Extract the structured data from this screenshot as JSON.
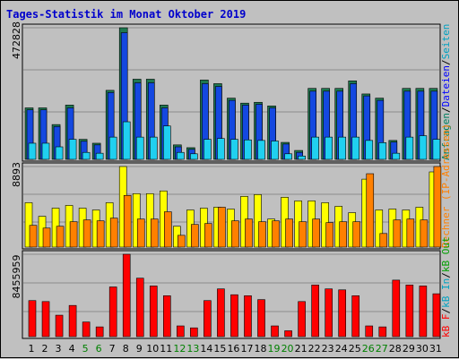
{
  "window": {
    "title": "Tages-Statistik im Monat Oktober 2019",
    "title_color": "#0000cc"
  },
  "chart_data": {
    "type": "bar",
    "title": "Tages-Statistik im Monat Oktober 2019",
    "grid": true,
    "categories": [
      "1",
      "2",
      "3",
      "4",
      "5",
      "6",
      "7",
      "8",
      "9",
      "10",
      "11",
      "12",
      "13",
      "14",
      "15",
      "16",
      "17",
      "18",
      "19",
      "20",
      "21",
      "22",
      "23",
      "24",
      "25",
      "26",
      "27",
      "28",
      "29",
      "30",
      "31"
    ],
    "weekend_days": [
      "5",
      "6",
      "12",
      "13",
      "19",
      "20",
      "26",
      "27"
    ],
    "tick_colors": {
      "weekday": "#000000",
      "weekend": "#008000"
    },
    "panels": [
      {
        "id": "requests",
        "max_label": "472828",
        "ylim": [
          0,
          472828
        ],
        "legend": [
          {
            "text": "Anfragen",
            "color": "#008060"
          },
          {
            "text": "/",
            "color": "#000000"
          },
          {
            "text": "Dateien",
            "color": "#0000ff"
          },
          {
            "text": "/",
            "color": "#000000"
          },
          {
            "text": "Seiten",
            "color": "#00a0c0"
          }
        ],
        "series": [
          {
            "name": "Anfragen",
            "color": "#1e7850",
            "values": [
              185000,
              185000,
              125000,
              195000,
              72000,
              58000,
              248000,
              472828,
              288000,
              288000,
              195000,
              52000,
              42000,
              285000,
              272000,
              220000,
              202000,
              205000,
              192000,
              61000,
              32000,
              255000,
              255000,
              255000,
              282000,
              235000,
              220000,
              68000,
              255000,
              255000,
              255000
            ]
          },
          {
            "name": "Dateien",
            "color": "#1448e0",
            "values": [
              178000,
              178000,
              118000,
              185000,
              65000,
              52000,
              240000,
              455000,
              275000,
              275000,
              185000,
              45000,
              36000,
              272000,
              262000,
              212000,
              195000,
              198000,
              185000,
              55000,
              25000,
              245000,
              245000,
              245000,
              272000,
              228000,
              212000,
              62000,
              245000,
              245000,
              245000
            ]
          },
          {
            "name": "Seiten",
            "color": "#20d0f0",
            "values": [
              58000,
              58000,
              45000,
              72000,
              25000,
              22000,
              80000,
              135000,
              80000,
              80000,
              120000,
              25000,
              20000,
              72000,
              75000,
              72000,
              70000,
              68000,
              66000,
              20000,
              12000,
              80000,
              80000,
              80000,
              80000,
              68000,
              60000,
              22000,
              80000,
              85000,
              72000
            ]
          }
        ]
      },
      {
        "id": "rechner",
        "max_label": "8893",
        "ylim": [
          0,
          8893
        ],
        "legend": [
          {
            "text": "Rechner (IP-Adressen)",
            "color": "#ff8000"
          }
        ],
        "series": [
          {
            "name": "Rechner (IP-Adressen)",
            "color": "#ffff00",
            "values": [
              4900,
              3400,
              4300,
              4600,
              4300,
              4100,
              4900,
              8893,
              5900,
              5900,
              6200,
              2300,
              4100,
              4300,
              4400,
              4200,
              5600,
              5800,
              3100,
              5500,
              5100,
              5100,
              4900,
              4500,
              3800,
              7500,
              4100,
              4200,
              4100,
              4400,
              8300
            ]
          },
          {
            "name": "Rechner (IP-Adressen)",
            "color": "#ff8000",
            "values": [
              2400,
              2100,
              2300,
              2800,
              3000,
              2900,
              3200,
              5700,
              3100,
              3100,
              3900,
              1300,
              2500,
              2600,
              4400,
              2900,
              3100,
              2800,
              2900,
              3100,
              2800,
              3100,
              2700,
              2800,
              2800,
              8100,
              1500,
              3000,
              3100,
              3000,
              8893
            ]
          }
        ]
      },
      {
        "id": "kb",
        "max_label": "8455959",
        "ylim": [
          0,
          8455959
        ],
        "legend": [
          {
            "text": "kB F",
            "color": "#ff0000"
          },
          {
            "text": "/",
            "color": "#000000"
          },
          {
            "text": "kB In",
            "color": "#00a0c0"
          },
          {
            "text": "/",
            "color": "#000000"
          },
          {
            "text": "kB Out",
            "color": "#00a000"
          }
        ],
        "series": [
          {
            "name": "kB F",
            "color": "#ff0000",
            "values": [
              3700,
              3600,
              2200,
              3200,
              1500,
              1000,
              5100,
              8455,
              6000,
              5200,
              4200,
              1100,
              900,
              3700,
              4900,
              4300,
              4200,
              3800,
              1100,
              600,
              3600,
              5300,
              4900,
              4800,
              4200,
              1100,
              1000,
              5800,
              5300,
              5200,
              4400
            ]
          }
        ]
      }
    ]
  }
}
